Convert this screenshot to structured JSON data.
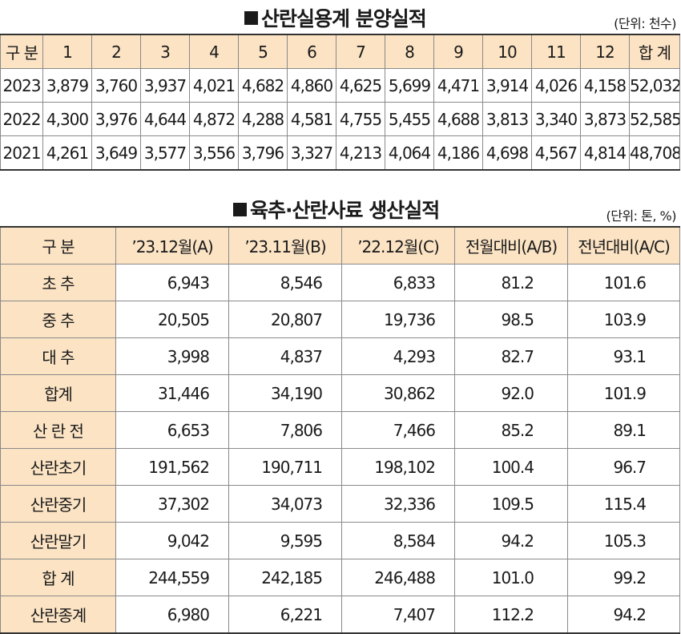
{
  "table1": {
    "title": "산란실용계 분양실적",
    "unit": "(단위: 천수)",
    "headers": [
      "구 분",
      "1",
      "2",
      "3",
      "4",
      "5",
      "6",
      "7",
      "8",
      "9",
      "10",
      "11",
      "12",
      "합 계"
    ],
    "rows": [
      [
        "2023",
        "3,879",
        "3,760",
        "3,937",
        "4,021",
        "4,682",
        "4,860",
        "4,625",
        "5,699",
        "4,471",
        "3,914",
        "4,026",
        "4,158",
        "52,032"
      ],
      [
        "2022",
        "4,300",
        "3,976",
        "4,644",
        "4,872",
        "4,288",
        "4,581",
        "4,755",
        "5,455",
        "4,688",
        "3,813",
        "3,340",
        "3,873",
        "52,585"
      ],
      [
        "2021",
        "4,261",
        "3,649",
        "3,577",
        "3,556",
        "3,796",
        "3,327",
        "4,213",
        "4,064",
        "4,186",
        "4,698",
        "4,567",
        "4,814",
        "48,708"
      ]
    ]
  },
  "table2": {
    "title": "육추·산란사료 생산실적",
    "unit": "(단위: 톤, %)",
    "headers": [
      "구 분",
      "’23.12월(A)",
      "’23.11월(B)",
      "’22.12월(C)",
      "전월대비(A/B)",
      "전년대비(A/C)"
    ],
    "rows": [
      [
        "초 추",
        "6,943",
        "8,546",
        "6,833",
        "81.2",
        "101.6"
      ],
      [
        "중 추",
        "20,505",
        "20,807",
        "19,736",
        "98.5",
        "103.9"
      ],
      [
        "대 추",
        "3,998",
        "4,837",
        "4,293",
        "82.7",
        "93.1"
      ],
      [
        "합계",
        "31,446",
        "34,190",
        "30,862",
        "92.0",
        "101.9"
      ],
      [
        "산 란 전",
        "6,653",
        "7,806",
        "7,466",
        "85.2",
        "89.1"
      ],
      [
        "산란초기",
        "191,562",
        "190,711",
        "198,102",
        "100.4",
        "96.7"
      ],
      [
        "산란중기",
        "37,302",
        "34,073",
        "32,336",
        "109.5",
        "115.4"
      ],
      [
        "산란말기",
        "9,042",
        "9,595",
        "8,584",
        "94.2",
        "105.3"
      ],
      [
        "합 계",
        "244,559",
        "242,185",
        "246,488",
        "101.0",
        "99.2"
      ],
      [
        "산란종계",
        "6,980",
        "6,221",
        "7,407",
        "112.2",
        "94.2"
      ]
    ]
  },
  "colors": {
    "header_bg": "#fbe3c4",
    "border": "#8a8a8a",
    "text": "#1a1a1a"
  }
}
